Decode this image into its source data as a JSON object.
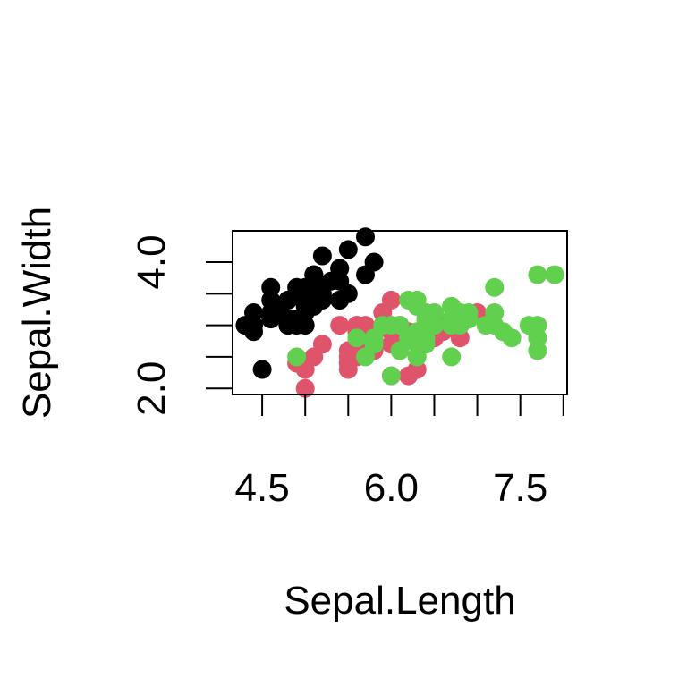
{
  "chart_data": {
    "type": "scatter",
    "title": "",
    "xlabel": "Sepal.Length",
    "ylabel": "Sepal.Width",
    "xlim": [
      4.3,
      7.9
    ],
    "ylim": [
      2.0,
      4.4
    ],
    "x_ticks": [
      4.5,
      5.0,
      5.5,
      6.0,
      6.5,
      7.0,
      7.5,
      8.0
    ],
    "x_tick_labels": [
      "4.5",
      "",
      "",
      "6.0",
      "",
      "",
      "7.5",
      ""
    ],
    "y_ticks": [
      2.0,
      2.5,
      3.0,
      3.5,
      4.0
    ],
    "y_tick_labels": [
      "2.0",
      "",
      "",
      "",
      "4.0"
    ],
    "grid": false,
    "legend": "none",
    "series": [
      {
        "color": "#000000",
        "points": [
          [
            5.1,
            3.5
          ],
          [
            4.9,
            3.0
          ],
          [
            4.7,
            3.2
          ],
          [
            4.6,
            3.1
          ],
          [
            5.0,
            3.6
          ],
          [
            5.4,
            3.9
          ],
          [
            4.6,
            3.4
          ],
          [
            5.0,
            3.4
          ],
          [
            4.4,
            2.9
          ],
          [
            4.9,
            3.1
          ],
          [
            5.4,
            3.7
          ],
          [
            4.8,
            3.4
          ],
          [
            4.8,
            3.0
          ],
          [
            4.3,
            3.0
          ],
          [
            5.8,
            4.0
          ],
          [
            5.7,
            4.4
          ],
          [
            5.4,
            3.9
          ],
          [
            5.1,
            3.5
          ],
          [
            5.7,
            3.8
          ],
          [
            5.1,
            3.8
          ],
          [
            5.4,
            3.4
          ],
          [
            5.1,
            3.7
          ],
          [
            4.6,
            3.6
          ],
          [
            5.1,
            3.3
          ],
          [
            4.8,
            3.4
          ],
          [
            5.0,
            3.0
          ],
          [
            5.0,
            3.4
          ],
          [
            5.2,
            3.5
          ],
          [
            5.2,
            3.4
          ],
          [
            4.7,
            3.2
          ],
          [
            4.8,
            3.1
          ],
          [
            5.4,
            3.4
          ],
          [
            5.2,
            4.1
          ],
          [
            5.5,
            4.2
          ],
          [
            4.9,
            3.1
          ],
          [
            5.0,
            3.2
          ],
          [
            5.5,
            3.5
          ],
          [
            4.9,
            3.6
          ],
          [
            4.4,
            3.0
          ],
          [
            5.1,
            3.4
          ],
          [
            5.0,
            3.5
          ],
          [
            4.5,
            2.3
          ],
          [
            4.4,
            3.2
          ],
          [
            5.0,
            3.5
          ],
          [
            5.1,
            3.8
          ],
          [
            4.8,
            3.0
          ],
          [
            5.1,
            3.8
          ],
          [
            4.6,
            3.2
          ],
          [
            5.3,
            3.7
          ],
          [
            5.0,
            3.3
          ]
        ]
      },
      {
        "color": "#DF536B",
        "points": [
          [
            7.0,
            3.2
          ],
          [
            6.4,
            3.2
          ],
          [
            6.9,
            3.1
          ],
          [
            5.5,
            2.3
          ],
          [
            6.5,
            2.8
          ],
          [
            5.7,
            2.8
          ],
          [
            6.3,
            3.3
          ],
          [
            4.9,
            2.4
          ],
          [
            6.6,
            2.9
          ],
          [
            5.2,
            2.7
          ],
          [
            5.0,
            2.0
          ],
          [
            5.9,
            3.0
          ],
          [
            6.0,
            2.2
          ],
          [
            6.1,
            2.9
          ],
          [
            5.6,
            2.9
          ],
          [
            6.7,
            3.1
          ],
          [
            5.6,
            3.0
          ],
          [
            5.8,
            2.7
          ],
          [
            6.2,
            2.2
          ],
          [
            5.6,
            2.5
          ],
          [
            5.9,
            3.2
          ],
          [
            6.1,
            2.8
          ],
          [
            6.3,
            2.5
          ],
          [
            6.1,
            2.8
          ],
          [
            6.4,
            2.9
          ],
          [
            6.6,
            3.0
          ],
          [
            6.8,
            2.8
          ],
          [
            6.7,
            3.0
          ],
          [
            6.0,
            2.9
          ],
          [
            5.7,
            2.6
          ],
          [
            5.5,
            2.4
          ],
          [
            5.5,
            2.4
          ],
          [
            5.8,
            2.7
          ],
          [
            6.0,
            2.7
          ],
          [
            5.4,
            3.0
          ],
          [
            6.0,
            3.4
          ],
          [
            6.7,
            3.1
          ],
          [
            6.3,
            2.3
          ],
          [
            5.6,
            3.0
          ],
          [
            5.5,
            2.5
          ],
          [
            5.5,
            2.6
          ],
          [
            6.1,
            3.0
          ],
          [
            5.8,
            2.6
          ],
          [
            5.0,
            2.3
          ],
          [
            5.6,
            2.7
          ],
          [
            5.7,
            3.0
          ],
          [
            5.7,
            2.9
          ],
          [
            6.2,
            2.9
          ],
          [
            5.1,
            2.5
          ],
          [
            5.7,
            2.8
          ]
        ]
      },
      {
        "color": "#61D04F",
        "points": [
          [
            6.3,
            3.3
          ],
          [
            5.8,
            2.7
          ],
          [
            7.1,
            3.0
          ],
          [
            6.3,
            2.9
          ],
          [
            6.5,
            3.0
          ],
          [
            7.6,
            3.0
          ],
          [
            4.9,
            2.5
          ],
          [
            7.3,
            2.9
          ],
          [
            6.7,
            2.5
          ],
          [
            7.2,
            3.6
          ],
          [
            6.5,
            3.2
          ],
          [
            6.4,
            2.7
          ],
          [
            6.8,
            3.0
          ],
          [
            5.7,
            2.5
          ],
          [
            5.8,
            2.8
          ],
          [
            6.4,
            3.2
          ],
          [
            6.5,
            3.0
          ],
          [
            7.7,
            3.8
          ],
          [
            7.7,
            2.6
          ],
          [
            6.0,
            2.2
          ],
          [
            6.9,
            3.2
          ],
          [
            5.6,
            2.8
          ],
          [
            7.7,
            2.8
          ],
          [
            6.3,
            2.7
          ],
          [
            6.7,
            3.3
          ],
          [
            7.2,
            3.2
          ],
          [
            6.2,
            2.8
          ],
          [
            6.1,
            3.0
          ],
          [
            6.4,
            2.8
          ],
          [
            7.2,
            3.0
          ],
          [
            7.4,
            2.8
          ],
          [
            7.9,
            3.8
          ],
          [
            6.4,
            2.8
          ],
          [
            6.3,
            2.8
          ],
          [
            6.1,
            2.6
          ],
          [
            7.7,
            3.0
          ],
          [
            6.3,
            3.4
          ],
          [
            6.4,
            3.1
          ],
          [
            6.0,
            3.0
          ],
          [
            6.9,
            3.1
          ],
          [
            6.7,
            3.1
          ],
          [
            6.9,
            3.1
          ],
          [
            5.8,
            2.7
          ],
          [
            6.8,
            3.2
          ],
          [
            6.7,
            3.3
          ],
          [
            6.7,
            3.0
          ],
          [
            6.3,
            2.5
          ],
          [
            6.5,
            3.0
          ],
          [
            6.2,
            3.4
          ],
          [
            5.9,
            3.0
          ]
        ]
      }
    ]
  }
}
